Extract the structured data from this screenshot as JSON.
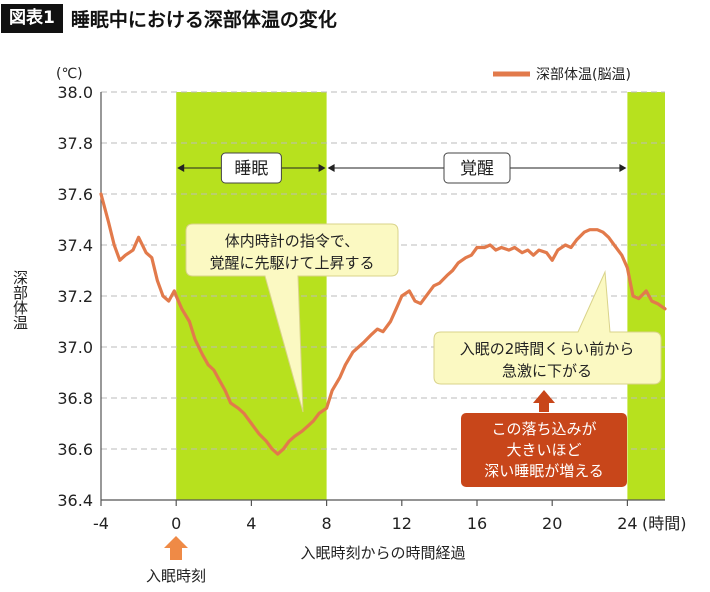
{
  "header": {
    "label": "図表1",
    "title": "睡眠中における深部体温の変化"
  },
  "colors": {
    "line": "#e27a4b",
    "band": "#b7e11e",
    "grid": "#bbbbbb",
    "arrow": "#ef8a46",
    "note_dark": "#c8461a",
    "bubble": "#fbf9c2"
  },
  "chart_data": {
    "type": "line",
    "title": "睡眠中における深部体温の変化",
    "xlabel": "入眠時刻からの時間経過",
    "ylabel": "深部体温",
    "y_unit": "(℃)",
    "x_unit": "(時間)",
    "xlim": [
      -4,
      26
    ],
    "ylim": [
      36.4,
      38.0
    ],
    "x_ticks": [
      "-4",
      "0",
      "4",
      "8",
      "12",
      "16",
      "20",
      "24"
    ],
    "y_ticks": [
      "36.4",
      "36.6",
      "36.8",
      "37.0",
      "37.2",
      "37.4",
      "37.6",
      "37.8",
      "38.0"
    ],
    "grid": "horizontal dashed",
    "legend_position": "top-right",
    "series": [
      {
        "name": "深部体温(脳温)",
        "x": [
          -4,
          -3.6,
          -3.3,
          -3,
          -2.7,
          -2.3,
          -2,
          -1.6,
          -1.3,
          -1,
          -0.7,
          -0.4,
          -0.1,
          0,
          0.3,
          0.7,
          1,
          1.4,
          1.7,
          2,
          2.3,
          2.6,
          2.9,
          3.3,
          3.6,
          4,
          4.4,
          4.8,
          5.1,
          5.4,
          5.7,
          6,
          6.3,
          6.7,
          7,
          7.3,
          7.6,
          8,
          8.3,
          8.7,
          9,
          9.4,
          9.7,
          10,
          10.4,
          10.7,
          11,
          11.4,
          11.7,
          12,
          12.4,
          12.7,
          13,
          13.4,
          13.7,
          14,
          14.4,
          14.7,
          15,
          15.4,
          15.7,
          16,
          16.4,
          16.7,
          17,
          17.3,
          17.7,
          18,
          18.4,
          18.7,
          19,
          19.3,
          19.7,
          20,
          20.3,
          20.7,
          21,
          21.3,
          21.7,
          22,
          22.4,
          22.7,
          23,
          23.3,
          23.7,
          24,
          24.3,
          24.6,
          25,
          25.3,
          25.6,
          26
        ],
        "y": [
          37.6,
          37.49,
          37.4,
          37.34,
          37.36,
          37.38,
          37.43,
          37.37,
          37.35,
          37.26,
          37.2,
          37.18,
          37.22,
          37.2,
          37.15,
          37.1,
          37.03,
          36.97,
          36.93,
          36.91,
          36.87,
          36.83,
          36.78,
          36.76,
          36.74,
          36.7,
          36.66,
          36.63,
          36.6,
          36.58,
          36.6,
          36.63,
          36.65,
          36.67,
          36.69,
          36.71,
          36.74,
          36.76,
          36.83,
          36.88,
          36.93,
          36.98,
          37.0,
          37.02,
          37.05,
          37.07,
          37.06,
          37.1,
          37.15,
          37.2,
          37.22,
          37.18,
          37.17,
          37.21,
          37.24,
          37.25,
          37.28,
          37.3,
          37.33,
          37.35,
          37.36,
          37.39,
          37.39,
          37.4,
          37.38,
          37.39,
          37.38,
          37.39,
          37.37,
          37.38,
          37.36,
          37.38,
          37.37,
          37.34,
          37.38,
          37.4,
          37.39,
          37.42,
          37.45,
          37.46,
          37.46,
          37.45,
          37.43,
          37.4,
          37.36,
          37.31,
          37.2,
          37.19,
          37.22,
          37.18,
          37.17,
          37.15
        ]
      }
    ],
    "bands": [
      {
        "from": 0,
        "to": 8,
        "label": "睡眠"
      },
      {
        "from": 24,
        "to": 26
      }
    ],
    "spans": [
      {
        "from": 0,
        "to": 8,
        "label": "睡眠"
      },
      {
        "from": 8,
        "to": 24,
        "label": "覚醒"
      }
    ],
    "annotations": {
      "callout1_line1": "体内時計の指令で、",
      "callout1_line2": "覚醒に先駆けて上昇する",
      "callout2_line1": "入眠の2時間くらい前から",
      "callout2_line2": "急激に下がる",
      "note_line1": "この落ち込みが",
      "note_line2": "大きいほど",
      "note_line3": "深い睡眠が増える",
      "onset_label": "入眠時刻"
    }
  }
}
